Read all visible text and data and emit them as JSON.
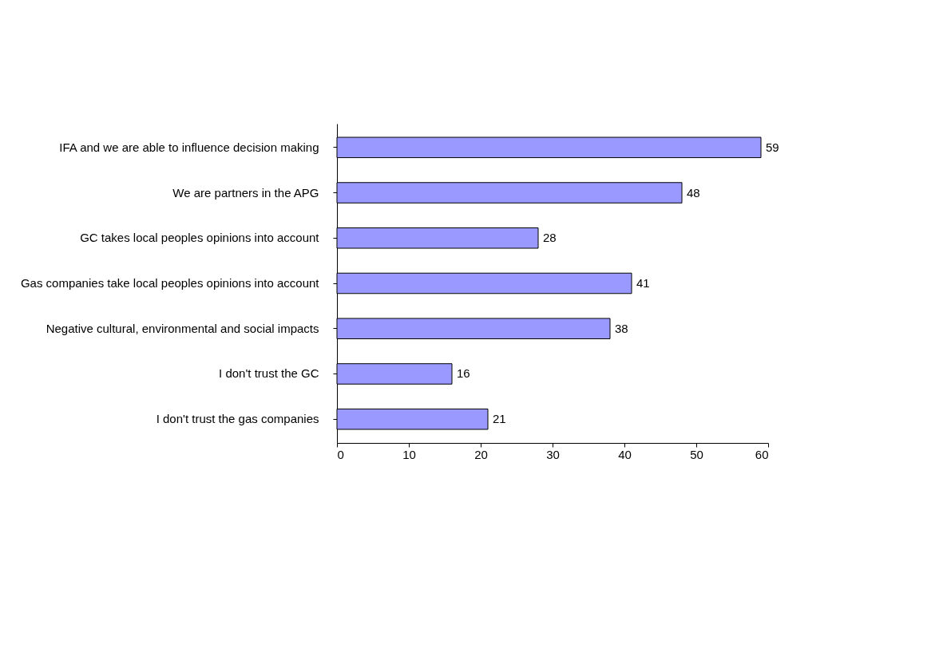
{
  "chart_data": {
    "type": "bar",
    "orientation": "horizontal",
    "categories": [
      "IFA and we are able to influence decision making",
      "We are partners in the APG",
      "GC takes local peoples opinions into account",
      "Gas companies take local peoples opinions into account",
      "Negative cultural, environmental and social impacts",
      "I don't trust the GC",
      "I don't trust the gas companies"
    ],
    "values": [
      59,
      48,
      28,
      41,
      38,
      16,
      21
    ],
    "color": "#9999ff",
    "xlim": [
      0,
      60
    ],
    "xticks": [
      0,
      10,
      20,
      30,
      40,
      50,
      60
    ],
    "data_labels": true,
    "grid": false
  }
}
